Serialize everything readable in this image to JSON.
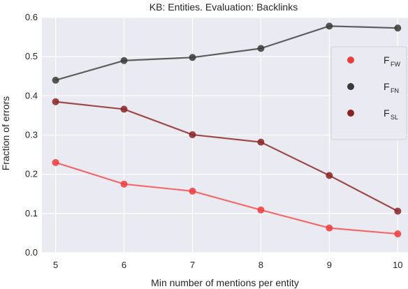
{
  "chart_data": {
    "type": "line",
    "title": "KB: Entities. Evaluation: Backlinks",
    "xlabel": "Min number of mentions per entity",
    "ylabel": "Fraction of errors",
    "x": [
      5,
      6,
      7,
      8,
      9,
      10
    ],
    "xticks": [
      "5",
      "6",
      "7",
      "8",
      "9",
      "10"
    ],
    "xlim": [
      4.8,
      10.15
    ],
    "ylim": [
      0.0,
      0.6
    ],
    "yticks": [
      "0.0",
      "0.1",
      "0.2",
      "0.3",
      "0.4",
      "0.5",
      "0.6"
    ],
    "grid": true,
    "legend_position": "right",
    "background": "#eaeaf2",
    "series": [
      {
        "name": "F",
        "subscript": "FW",
        "color": "#f03b3b",
        "line_color": "#f26b6b",
        "values": [
          0.23,
          0.175,
          0.157,
          0.109,
          0.063,
          0.048
        ]
      },
      {
        "name": "F",
        "subscript": "FN",
        "color": "#3a3a3a",
        "line_color": "#5e5e5e",
        "values": [
          0.44,
          0.49,
          0.498,
          0.521,
          0.578,
          0.573
        ]
      },
      {
        "name": "F",
        "subscript": "SL",
        "color": "#8b2323",
        "line_color": "#9f4a4a",
        "values": [
          0.385,
          0.366,
          0.301,
          0.282,
          0.197,
          0.106
        ]
      }
    ]
  }
}
